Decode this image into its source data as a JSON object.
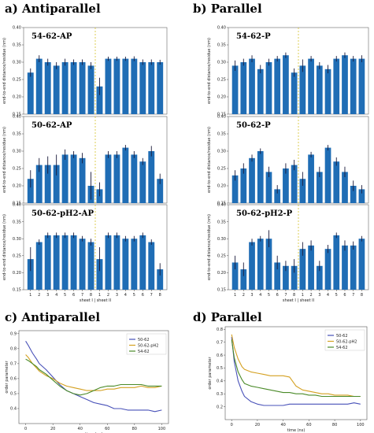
{
  "sections": {
    "a": "a) Antiparallel",
    "b": "b) Parallel",
    "c": "c) Antiparallel",
    "d": "d) Parallel"
  },
  "chart_data": [
    {
      "id": "54-62-AP",
      "type": "bar",
      "title": "54-62-AP",
      "categories": [
        "1",
        "2",
        "3",
        "4",
        "5",
        "6",
        "7",
        "8",
        "1",
        "2",
        "3",
        "4",
        "5",
        "6",
        "7",
        "8"
      ],
      "values": [
        0.27,
        0.31,
        0.3,
        0.29,
        0.3,
        0.3,
        0.3,
        0.29,
        0.23,
        0.31,
        0.31,
        0.31,
        0.31,
        0.3,
        0.3,
        0.3
      ],
      "errors": [
        0.012,
        0.01,
        0.01,
        0.01,
        0.01,
        0.008,
        0.008,
        0.01,
        0.025,
        0.006,
        0.006,
        0.006,
        0.007,
        0.008,
        0.008,
        0.007
      ],
      "ylabel": "end-to-end distance/residue (nm)",
      "ylim": [
        0.15,
        0.4
      ],
      "yticks": [
        "0.15",
        "0.20",
        "0.25",
        "0.30",
        "0.35",
        "0.40"
      ],
      "show_x": false
    },
    {
      "id": "50-62-AP",
      "type": "bar",
      "title": "50-62-AP",
      "categories": [
        "1",
        "2",
        "3",
        "4",
        "5",
        "6",
        "7",
        "8",
        "1",
        "2",
        "3",
        "4",
        "5",
        "6",
        "7",
        "8"
      ],
      "values": [
        0.22,
        0.26,
        0.26,
        0.26,
        0.29,
        0.29,
        0.28,
        0.2,
        0.19,
        0.29,
        0.29,
        0.31,
        0.29,
        0.27,
        0.3,
        0.22
      ],
      "errors": [
        0.025,
        0.02,
        0.025,
        0.03,
        0.015,
        0.01,
        0.015,
        0.04,
        0.02,
        0.01,
        0.01,
        0.008,
        0.01,
        0.01,
        0.015,
        0.015
      ],
      "ylabel": "end-to-end distance/residue (nm)",
      "ylim": [
        0.15,
        0.4
      ],
      "yticks": [
        "0.15",
        "0.20",
        "0.25",
        "0.30",
        "0.35",
        "0.40"
      ],
      "show_x": false
    },
    {
      "id": "50-62-pH2-AP",
      "type": "bar",
      "title": "50-62-pH2-AP",
      "categories": [
        "1",
        "2",
        "3",
        "4",
        "5",
        "6",
        "7",
        "8",
        "1",
        "2",
        "3",
        "4",
        "5",
        "6",
        "7",
        "8"
      ],
      "values": [
        0.24,
        0.29,
        0.31,
        0.31,
        0.31,
        0.31,
        0.3,
        0.29,
        0.24,
        0.31,
        0.31,
        0.3,
        0.3,
        0.31,
        0.29,
        0.21
      ],
      "errors": [
        0.035,
        0.008,
        0.008,
        0.008,
        0.008,
        0.008,
        0.008,
        0.01,
        0.035,
        0.008,
        0.008,
        0.008,
        0.008,
        0.008,
        0.008,
        0.018
      ],
      "ylabel": "end-to-end distance/residue (nm)",
      "ylim": [
        0.15,
        0.4
      ],
      "yticks": [
        "0.15",
        "0.20",
        "0.25",
        "0.30",
        "0.35",
        "0.40"
      ],
      "show_x": true,
      "xlabel": "sheet I | sheet II"
    },
    {
      "id": "54-62-P",
      "type": "bar",
      "title": "54-62-P",
      "categories": [
        "1",
        "2",
        "3",
        "4",
        "5",
        "6",
        "7",
        "8",
        "1",
        "2",
        "3",
        "4",
        "5",
        "6",
        "7",
        "8"
      ],
      "values": [
        0.29,
        0.3,
        0.31,
        0.28,
        0.3,
        0.31,
        0.32,
        0.27,
        0.29,
        0.31,
        0.29,
        0.28,
        0.31,
        0.32,
        0.31,
        0.31
      ],
      "errors": [
        0.015,
        0.01,
        0.01,
        0.012,
        0.01,
        0.008,
        0.008,
        0.012,
        0.018,
        0.008,
        0.01,
        0.012,
        0.008,
        0.008,
        0.008,
        0.01
      ],
      "ylabel": "end-to-end distance/residue (nm)",
      "ylim": [
        0.15,
        0.4
      ],
      "yticks": [
        "0.15",
        "0.20",
        "0.25",
        "0.30",
        "0.35",
        "0.40"
      ],
      "show_x": false
    },
    {
      "id": "50-62-P",
      "type": "bar",
      "title": "50-62-P",
      "categories": [
        "1",
        "2",
        "3",
        "4",
        "5",
        "6",
        "7",
        "8",
        "1",
        "2",
        "3",
        "4",
        "5",
        "6",
        "7",
        "8"
      ],
      "values": [
        0.23,
        0.25,
        0.28,
        0.3,
        0.24,
        0.19,
        0.25,
        0.26,
        0.22,
        0.29,
        0.24,
        0.31,
        0.27,
        0.24,
        0.2,
        0.19
      ],
      "errors": [
        0.015,
        0.015,
        0.01,
        0.008,
        0.015,
        0.012,
        0.015,
        0.015,
        0.02,
        0.008,
        0.015,
        0.008,
        0.012,
        0.015,
        0.015,
        0.012
      ],
      "ylabel": "end-to-end distance/residue (nm)",
      "ylim": [
        0.15,
        0.4
      ],
      "yticks": [
        "0.15",
        "0.20",
        "0.25",
        "0.30",
        "0.35",
        "0.40"
      ],
      "show_x": false
    },
    {
      "id": "50-62-pH2-P",
      "type": "bar",
      "title": "50-62-pH2-P",
      "categories": [
        "1",
        "2",
        "3",
        "4",
        "5",
        "6",
        "7",
        "8",
        "1",
        "2",
        "3",
        "4",
        "5",
        "6",
        "7",
        "8"
      ],
      "values": [
        0.23,
        0.21,
        0.29,
        0.3,
        0.3,
        0.23,
        0.22,
        0.22,
        0.27,
        0.28,
        0.22,
        0.27,
        0.31,
        0.28,
        0.28,
        0.3
      ],
      "errors": [
        0.02,
        0.02,
        0.01,
        0.008,
        0.025,
        0.02,
        0.015,
        0.02,
        0.02,
        0.015,
        0.015,
        0.012,
        0.008,
        0.015,
        0.012,
        0.008
      ],
      "ylabel": "end-to-end distance/residue (nm)",
      "ylim": [
        0.15,
        0.4
      ],
      "yticks": [
        "0.15",
        "0.20",
        "0.25",
        "0.30",
        "0.35",
        "0.40"
      ],
      "show_x": true,
      "xlabel": "sheet I | sheet II"
    },
    {
      "id": "op-antiparallel",
      "type": "line",
      "xlabel": "time (ns)",
      "ylabel": "order parameter",
      "xlim": [
        -5,
        105
      ],
      "ylim": [
        0.3,
        0.92
      ],
      "xticks": [
        "0",
        "20",
        "40",
        "60",
        "80",
        "100"
      ],
      "yticks": [
        "0.4",
        "0.5",
        "0.6",
        "0.7",
        "0.8",
        "0.9"
      ],
      "legend_position": "top-right",
      "series": [
        {
          "name": "50-62",
          "color": "#4750b8",
          "x": [
            0,
            2,
            5,
            8,
            10,
            15,
            20,
            25,
            30,
            35,
            40,
            45,
            50,
            55,
            60,
            65,
            70,
            75,
            80,
            85,
            90,
            95,
            100
          ],
          "y": [
            0.85,
            0.82,
            0.77,
            0.73,
            0.7,
            0.66,
            0.61,
            0.56,
            0.52,
            0.5,
            0.48,
            0.46,
            0.44,
            0.43,
            0.42,
            0.4,
            0.4,
            0.39,
            0.39,
            0.39,
            0.39,
            0.38,
            0.39
          ]
        },
        {
          "name": "50-62-pH2",
          "color": "#d4a020",
          "x": [
            0,
            2,
            5,
            8,
            10,
            15,
            20,
            25,
            30,
            35,
            40,
            45,
            50,
            55,
            60,
            65,
            70,
            75,
            80,
            85,
            90,
            95,
            100
          ],
          "y": [
            0.76,
            0.74,
            0.7,
            0.67,
            0.65,
            0.62,
            0.6,
            0.57,
            0.55,
            0.54,
            0.53,
            0.52,
            0.52,
            0.52,
            0.53,
            0.53,
            0.54,
            0.54,
            0.54,
            0.55,
            0.54,
            0.54,
            0.55
          ]
        },
        {
          "name": "54-62",
          "color": "#4a8a28",
          "x": [
            0,
            2,
            5,
            8,
            10,
            15,
            20,
            25,
            30,
            35,
            40,
            45,
            50,
            55,
            60,
            65,
            70,
            75,
            80,
            85,
            90,
            95,
            100
          ],
          "y": [
            0.73,
            0.72,
            0.7,
            0.68,
            0.66,
            0.63,
            0.59,
            0.55,
            0.52,
            0.5,
            0.49,
            0.5,
            0.52,
            0.54,
            0.55,
            0.55,
            0.56,
            0.56,
            0.56,
            0.56,
            0.55,
            0.55,
            0.55
          ]
        }
      ]
    },
    {
      "id": "op-parallel",
      "type": "line",
      "xlabel": "time (ns)",
      "ylabel": "order parameter",
      "xlim": [
        -5,
        105
      ],
      "ylim": [
        0.1,
        0.82
      ],
      "xticks": [
        "0",
        "20",
        "40",
        "60",
        "80",
        "100"
      ],
      "yticks": [
        "0.2",
        "0.3",
        "0.4",
        "0.5",
        "0.6",
        "0.7",
        "0.8"
      ],
      "legend_position": "top-right",
      "series": [
        {
          "name": "50-62",
          "color": "#4750b8",
          "x": [
            0,
            2,
            5,
            8,
            10,
            15,
            20,
            25,
            30,
            35,
            40,
            45,
            50,
            55,
            60,
            65,
            70,
            75,
            80,
            85,
            90,
            95,
            100
          ],
          "y": [
            0.74,
            0.55,
            0.4,
            0.32,
            0.28,
            0.24,
            0.22,
            0.21,
            0.21,
            0.21,
            0.21,
            0.22,
            0.22,
            0.22,
            0.22,
            0.22,
            0.22,
            0.22,
            0.22,
            0.22,
            0.22,
            0.23,
            0.22
          ]
        },
        {
          "name": "50-62-pH2",
          "color": "#d4a020",
          "x": [
            0,
            2,
            5,
            8,
            10,
            15,
            20,
            25,
            30,
            35,
            40,
            45,
            50,
            55,
            60,
            65,
            70,
            75,
            80,
            85,
            90,
            95,
            100
          ],
          "y": [
            0.76,
            0.66,
            0.57,
            0.51,
            0.49,
            0.47,
            0.46,
            0.45,
            0.44,
            0.44,
            0.44,
            0.43,
            0.36,
            0.33,
            0.32,
            0.31,
            0.3,
            0.3,
            0.29,
            0.29,
            0.29,
            0.28,
            0.28
          ]
        },
        {
          "name": "54-62",
          "color": "#4a8a28",
          "x": [
            0,
            2,
            5,
            8,
            10,
            15,
            20,
            25,
            30,
            35,
            40,
            45,
            50,
            55,
            60,
            65,
            70,
            75,
            80,
            85,
            90,
            95,
            100
          ],
          "y": [
            0.72,
            0.58,
            0.47,
            0.41,
            0.38,
            0.36,
            0.35,
            0.34,
            0.33,
            0.32,
            0.31,
            0.31,
            0.3,
            0.3,
            0.29,
            0.29,
            0.28,
            0.28,
            0.28,
            0.28,
            0.28,
            0.28,
            0.28
          ]
        }
      ]
    }
  ]
}
